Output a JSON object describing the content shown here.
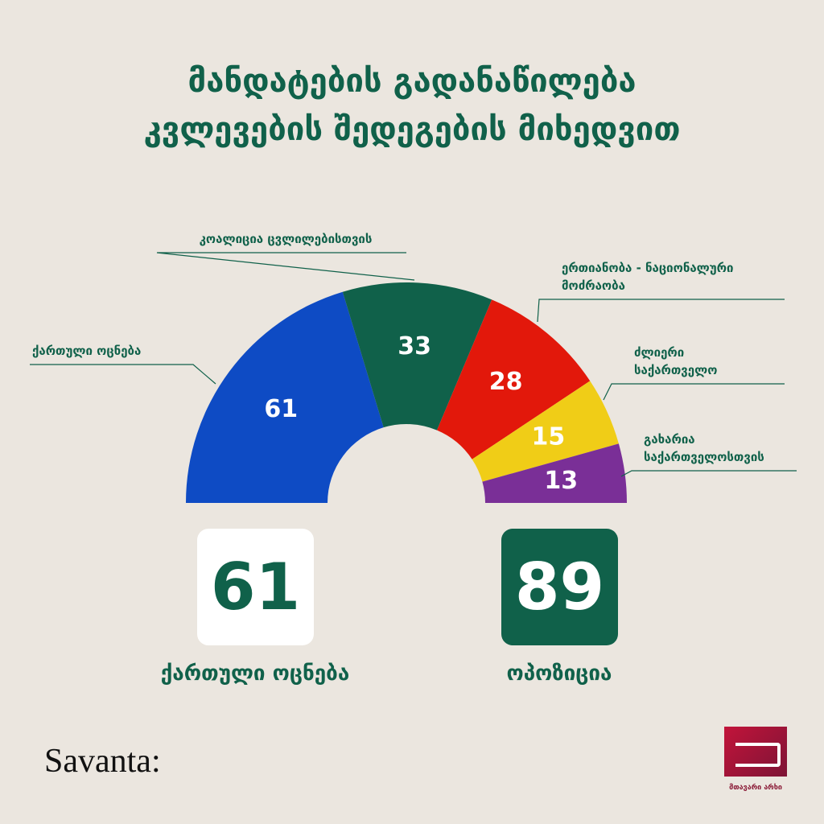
{
  "chart_data": {
    "type": "semicircle",
    "title": [
      "მანდატების გადანაწილება",
      "კვლევების შედეგების მიხედვით"
    ],
    "categories": [
      "ქართული ოცნება",
      "კოალიცია ცვლილებისთვის",
      "ერთიანობა - ნაციონალური მოძრაობა",
      "ძლიერი საქართველო",
      "გახარია საქართველოსთვის"
    ],
    "values": [
      61,
      33,
      28,
      15,
      13
    ],
    "colors": [
      "#0e4bc4",
      "#10614a",
      "#e2180b",
      "#f0cd17",
      "#7a2f97"
    ]
  },
  "summary": [
    {
      "value": 61,
      "label": "ქართული ოცნება",
      "color": "#ffffff"
    },
    {
      "value": 89,
      "label": "ოპოზიცია",
      "color": "#10614a"
    }
  ],
  "footer": {
    "left_logo": "Savanta:",
    "right_logo": "მთავარი არხი"
  }
}
